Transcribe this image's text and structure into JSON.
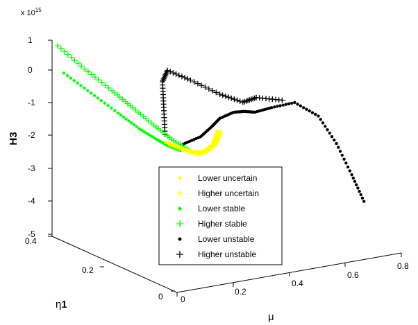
{
  "chart_data": {
    "type": "scatter",
    "projection": "3d",
    "exponent_label": "x 10",
    "exponent_power": "15",
    "xlabel": "μ",
    "ylabel_prefix": "η",
    "ylabel_suffix": "1",
    "zlabel": "H3",
    "x_ticks": [
      "0",
      "0.2",
      "0.4",
      "0.6",
      "0.8"
    ],
    "y_ticks": [
      "0",
      "0.2",
      "0.4"
    ],
    "z_ticks": [
      "1",
      "0",
      "-1",
      "-2",
      "-3",
      "-4",
      "-5"
    ],
    "xlim": [
      0,
      0.8
    ],
    "ylim": [
      0,
      0.4
    ],
    "zlim_e15": [
      -5,
      1
    ],
    "legend_position": "center",
    "series": [
      {
        "name": "Lower uncertain",
        "marker": "dot",
        "color": "#ffff00",
        "points_mu_eta_H": [
          [
            0.16,
            0.18,
            -1.42
          ],
          [
            0.18,
            0.16,
            -1.5
          ],
          [
            0.2,
            0.14,
            -1.58
          ],
          [
            0.22,
            0.12,
            -1.55
          ],
          [
            0.24,
            0.12,
            -1.48
          ],
          [
            0.26,
            0.12,
            -1.38
          ],
          [
            0.28,
            0.13,
            -1.25
          ],
          [
            0.3,
            0.14,
            -1.12
          ]
        ]
      },
      {
        "name": "Higher uncertain",
        "marker": "plus",
        "color": "#ffff00",
        "points_mu_eta_H": [
          [
            0.17,
            0.18,
            -1.48
          ],
          [
            0.19,
            0.15,
            -1.56
          ],
          [
            0.21,
            0.13,
            -1.62
          ],
          [
            0.23,
            0.12,
            -1.58
          ],
          [
            0.25,
            0.12,
            -1.5
          ],
          [
            0.27,
            0.12,
            -1.4
          ],
          [
            0.29,
            0.13,
            -1.28
          ],
          [
            0.31,
            0.14,
            -1.15
          ]
        ]
      },
      {
        "name": "Lower stable",
        "marker": "dot",
        "color": "#00ff00",
        "points_mu_eta_H": [
          [
            0.02,
            0.38,
            0.05
          ],
          [
            0.05,
            0.32,
            -0.35
          ],
          [
            0.08,
            0.26,
            -0.75
          ],
          [
            0.11,
            0.22,
            -1.1
          ],
          [
            0.14,
            0.19,
            -1.35
          ],
          [
            0.16,
            0.17,
            -1.5
          ],
          [
            0.18,
            0.15,
            -1.58
          ]
        ]
      },
      {
        "name": "Higher stable",
        "marker": "plus",
        "color": "#00ff00",
        "points_mu_eta_H": [
          [
            0.02,
            0.4,
            0.8
          ],
          [
            0.05,
            0.34,
            0.3
          ],
          [
            0.08,
            0.28,
            -0.15
          ],
          [
            0.11,
            0.24,
            -0.55
          ],
          [
            0.14,
            0.2,
            -0.95
          ],
          [
            0.17,
            0.17,
            -1.3
          ],
          [
            0.2,
            0.14,
            -1.55
          ]
        ]
      },
      {
        "name": "Lower unstable",
        "marker": "dot",
        "color": "#000000",
        "points_mu_eta_H": [
          [
            0.2,
            0.16,
            -1.45
          ],
          [
            0.24,
            0.14,
            -1.2
          ],
          [
            0.28,
            0.14,
            -0.95
          ],
          [
            0.32,
            0.15,
            -0.8
          ],
          [
            0.38,
            0.16,
            -0.75
          ],
          [
            0.44,
            0.18,
            -0.9
          ],
          [
            0.5,
            0.2,
            -1.1
          ],
          [
            0.56,
            0.2,
            -1.05
          ],
          [
            0.62,
            0.18,
            -0.9
          ],
          [
            0.66,
            0.14,
            -1.2
          ],
          [
            0.68,
            0.1,
            -1.9
          ],
          [
            0.69,
            0.06,
            -2.7
          ],
          [
            0.7,
            0.03,
            -3.4
          ]
        ]
      },
      {
        "name": "Higher unstable",
        "marker": "plus",
        "color": "#000000",
        "points_mu_eta_H": [
          [
            0.18,
            0.2,
            -1.3
          ],
          [
            0.22,
            0.24,
            -0.7
          ],
          [
            0.26,
            0.28,
            -0.15
          ],
          [
            0.3,
            0.3,
            0.05
          ],
          [
            0.36,
            0.28,
            -0.25
          ],
          [
            0.42,
            0.24,
            -0.6
          ],
          [
            0.48,
            0.22,
            -0.85
          ],
          [
            0.55,
            0.24,
            -0.9
          ],
          [
            0.62,
            0.22,
            -1.0
          ]
        ]
      }
    ]
  }
}
